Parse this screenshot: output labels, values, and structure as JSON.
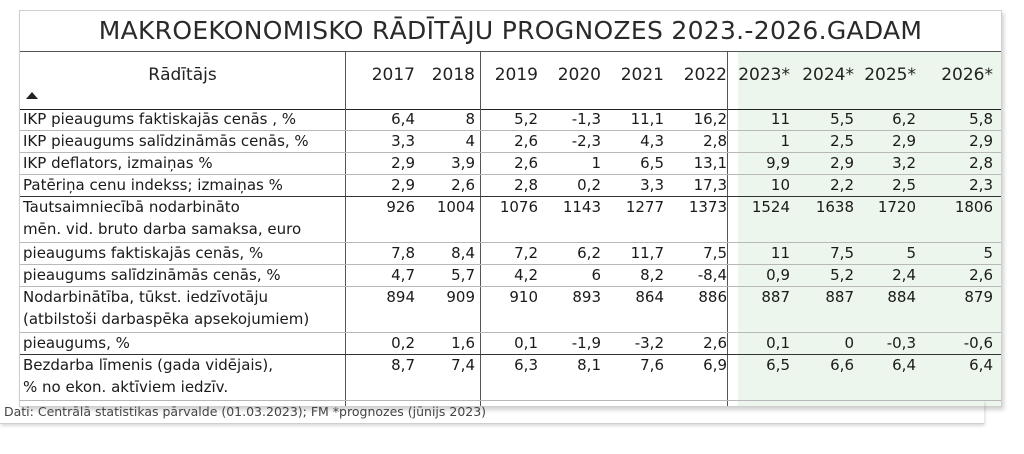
{
  "title": "MAKROEKONOMISKO RĀDĪTĀJU PROGNOZES 2023.-2026.GADAM",
  "header": {
    "label": "Rādītājs",
    "years": [
      "2017",
      "2018",
      "2019",
      "2020",
      "2021",
      "2022",
      "2023*",
      "2024*",
      "2025*",
      "2026*"
    ]
  },
  "rows": [
    {
      "label": [
        "IKP pieaugums faktiskajās cenās , %"
      ],
      "values": [
        "6,4",
        "8",
        "5,2",
        "-1,3",
        "11,1",
        "16,2",
        "11",
        "5,5",
        "6,2",
        "5,8"
      ]
    },
    {
      "label": [
        "IKP pieaugums salīdzināmās cenās, %"
      ],
      "values": [
        "3,3",
        "4",
        "2,6",
        "-2,3",
        "4,3",
        "2,8",
        "1",
        "2,5",
        "2,9",
        "2,9"
      ]
    },
    {
      "label": [
        "IKP deflators, izmaiņas %"
      ],
      "values": [
        "2,9",
        "3,9",
        "2,6",
        "1",
        "6,5",
        "13,1",
        "9,9",
        "2,9",
        "3,2",
        "2,8"
      ]
    },
    {
      "label": [
        "Patēriņa cenu indekss; izmaiņas %"
      ],
      "values": [
        "2,9",
        "2,6",
        "2,8",
        "0,2",
        "3,3",
        "17,3",
        "10",
        "2,2",
        "2,5",
        "2,3"
      ]
    },
    {
      "label": [
        "Tautsaimniecībā nodarbināto",
        "mēn. vid. bruto darba samaksa, euro"
      ],
      "values": [
        "926",
        "1004",
        "1076",
        "1143",
        "1277",
        "1373",
        "1524",
        "1638",
        "1720",
        "1806"
      ]
    },
    {
      "label": [
        "pieaugums faktiskajās cenās, %"
      ],
      "values": [
        "7,8",
        "8,4",
        "7,2",
        "6,2",
        "11,7",
        "7,5",
        "11",
        "7,5",
        "5",
        "5"
      ]
    },
    {
      "label": [
        "pieaugums salīdzināmās cenās, %"
      ],
      "values": [
        "4,7",
        "5,7",
        "4,2",
        "6",
        "8,2",
        "-8,4",
        "0,9",
        "5,2",
        "2,4",
        "2,6"
      ]
    },
    {
      "label": [
        "Nodarbinātība, tūkst. iedzīvotāju",
        "(atbilstoši darbaspēka apsekojumiem)"
      ],
      "values": [
        "894",
        "909",
        "910",
        "893",
        "864",
        "886",
        "887",
        "887",
        "884",
        "879"
      ]
    },
    {
      "label": [
        "pieaugums, %"
      ],
      "values": [
        "0,2",
        "1,6",
        "0,1",
        "-1,9",
        "-3,2",
        "2,6",
        "0,1",
        "0",
        "-0,3",
        "-0,6"
      ]
    },
    {
      "label": [
        "Bezdarba līmenis (gada vidējais),",
        "% no ekon. aktīviem iedzīv."
      ],
      "values": [
        "8,7",
        "7,4",
        "6,3",
        "8,1",
        "7,6",
        "6,9",
        "6,5",
        "6,6",
        "6,4",
        "6,4"
      ]
    }
  ],
  "footer": "Dati: Centrālā statistikas pārvalde (01.03.2023); FM *prognozes (jūnijs 2023)",
  "colors": {
    "forecast_bg": "#ecf6ec"
  }
}
